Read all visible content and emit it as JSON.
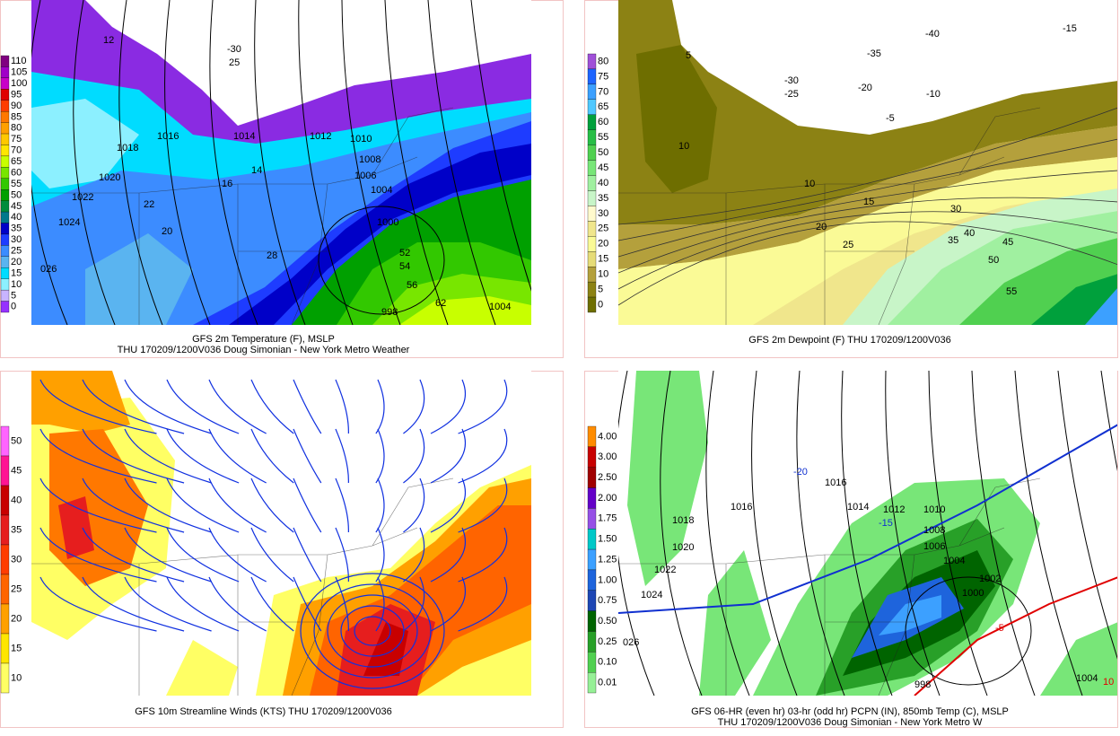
{
  "panels": [
    {
      "caption": [
        "GFS 2m Temperature (F), MSLP",
        "THU 170209/1200V036 Doug Simonian - New York Metro Weather"
      ],
      "colorbar": {
        "labels": [
          "110",
          "105",
          "100",
          "95",
          "90",
          "85",
          "80",
          "75",
          "70",
          "65",
          "60",
          "55",
          "50",
          "45",
          "40",
          "35",
          "30",
          "25",
          "20",
          "15",
          "10",
          "5",
          "0"
        ],
        "colors": [
          "#800080",
          "#a000c8",
          "#c800c8",
          "#e00000",
          "#ff3c00",
          "#ff7800",
          "#ffa000",
          "#ffc800",
          "#ffe600",
          "#c8ff00",
          "#78e600",
          "#32c800",
          "#00a000",
          "#008c3c",
          "#00788c",
          "#0000c8",
          "#1e3cff",
          "#3c8cff",
          "#5ab4f0",
          "#00dcff",
          "#8cf0ff",
          "#c8b4ff",
          "#9632ff"
        ]
      },
      "contour_labels": [
        "1018",
        "1020",
        "1022",
        "1024",
        "026",
        "1016",
        "1014",
        "1012",
        "1010",
        "1008",
        "1006",
        "1004",
        "1000",
        "998",
        "1004",
        "22",
        "20",
        "14",
        "16",
        "28",
        "52",
        "54",
        "56",
        "62",
        "-30",
        "25",
        "12"
      ]
    },
    {
      "caption": [
        "GFS 2m Dewpoint (F)  THU 170209/1200V036"
      ],
      "colorbar": {
        "labels": [
          "80",
          "75",
          "70",
          "65",
          "60",
          "55",
          "50",
          "45",
          "40",
          "35",
          "30",
          "25",
          "20",
          "15",
          "10",
          "5",
          "0"
        ],
        "colors": [
          "#a050d8",
          "#1e64ff",
          "#3ca0ff",
          "#50c8ff",
          "#00a03c",
          "#28be46",
          "#50d050",
          "#78e678",
          "#a0f0a0",
          "#c8f5c8",
          "#fffacd",
          "#f0e68c",
          "#fafa96",
          "#e6dc78",
          "#b4a03c",
          "#8c8214",
          "#6e6e00"
        ]
      },
      "contour_labels": [
        "5",
        "-35",
        "-40",
        "-30",
        "-20",
        "-10",
        "-5",
        "-25",
        "-15",
        "10",
        "10",
        "15",
        "20",
        "25",
        "30",
        "35",
        "40",
        "45",
        "50",
        "55"
      ]
    },
    {
      "caption": [
        "GFS 10m Streamline Winds (KTS)  THU 170209/1200V036"
      ],
      "colorbar": {
        "labels": [
          "50",
          "45",
          "40",
          "35",
          "30",
          "25",
          "20",
          "15",
          "10"
        ],
        "colors": [
          "#ff64ff",
          "#ff1493",
          "#c80000",
          "#e61e1e",
          "#ff3c00",
          "#ff6400",
          "#ffa000",
          "#ffe600",
          "#ffff64"
        ]
      },
      "contour_labels": []
    },
    {
      "caption": [
        "GFS 06-HR (even hr) 03-hr (odd hr) PCPN (IN), 850mb Temp (C), MSLP",
        "THU 170209/1200V036 Doug Simonian - New York Metro W"
      ],
      "colorbar": {
        "labels": [
          "4.00",
          "3.00",
          "2.50",
          "2.00",
          "1.75",
          "1.50",
          "1.25",
          "1.00",
          "0.75",
          "0.50",
          "0.25",
          "0.10",
          "0.01"
        ],
        "colors": [
          "#ff8c00",
          "#c80000",
          "#a00000",
          "#6400c8",
          "#9650e6",
          "#00c8c8",
          "#3ca0ff",
          "#1e64dc",
          "#1e46b4",
          "#006400",
          "#28a028",
          "#50d050",
          "#96f096"
        ]
      },
      "contour_labels": [
        "1016",
        "1018",
        "1016",
        "1014",
        "1012",
        "1010",
        "1008",
        "1006",
        "1004",
        "1002",
        "1000",
        "1022",
        "1024",
        "026",
        "1020",
        "998",
        "1004",
        "-20",
        "-15",
        "-5",
        "10"
      ]
    }
  ]
}
